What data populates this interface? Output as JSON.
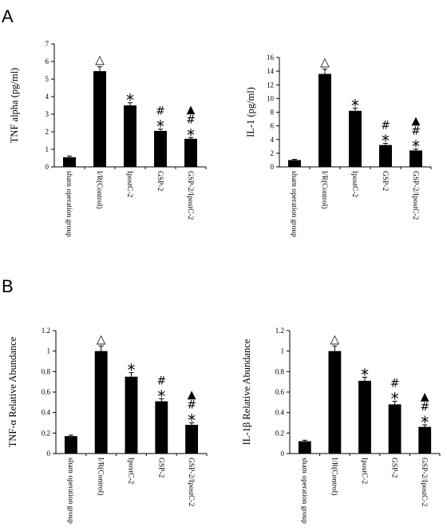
{
  "panels": [
    {
      "label": "A"
    },
    {
      "label": "B"
    }
  ],
  "chart_data": [
    {
      "type": "bar",
      "panel": "A",
      "categories": [
        "sham operation group",
        "I/R(Control)",
        "IpostC-2",
        "GSP-2",
        "GSP-2/IpostC-2"
      ],
      "values": [
        0.55,
        5.45,
        3.5,
        2.05,
        1.6
      ],
      "errors": [
        0.07,
        0.25,
        0.15,
        0.1,
        0.07
      ],
      "ylabel": "TNF alpha (pg/ml)",
      "ylim": [
        0,
        7
      ],
      "yticks": [
        "0",
        "1",
        "2",
        "3",
        "4",
        "5",
        "6",
        "7"
      ],
      "annotations": [
        [],
        [
          "△"
        ],
        [
          "*"
        ],
        [
          "*",
          "#"
        ],
        [
          "*",
          "#",
          "▲"
        ]
      ]
    },
    {
      "type": "bar",
      "panel": "A",
      "categories": [
        "sham operation group",
        "I/R(Control)",
        "IpostC-2",
        "GSP-2",
        "GSP-2/IpostC-2"
      ],
      "values": [
        1.0,
        13.6,
        8.2,
        3.2,
        2.4
      ],
      "errors": [
        0.1,
        0.7,
        0.4,
        0.25,
        0.2
      ],
      "ylabel": "IL-1 (pg/ml)",
      "ylim": [
        0,
        16
      ],
      "yticks": [
        "0",
        "2",
        "4",
        "6",
        "8",
        "10",
        "12",
        "14",
        "16"
      ],
      "annotations": [
        [],
        [
          "△"
        ],
        [
          "*"
        ],
        [
          "*",
          "#"
        ],
        [
          "*",
          "#",
          "▲"
        ]
      ]
    },
    {
      "type": "bar",
      "panel": "B",
      "categories": [
        "sham operation group",
        "I/R(Control)",
        "IpostC-2",
        "GSP-2",
        "GSP-2/IpostC-2"
      ],
      "values": [
        0.17,
        1.0,
        0.75,
        0.51,
        0.28
      ],
      "errors": [
        0.01,
        0.05,
        0.04,
        0.025,
        0.02
      ],
      "ylabel": "TNF-α Relative Abundance",
      "ylim": [
        0,
        1.2
      ],
      "yticks": [
        "0",
        "0.2",
        "0.4",
        "0.6",
        "0.8",
        "1",
        "1.2"
      ],
      "annotations": [
        [],
        [
          "△"
        ],
        [
          "*"
        ],
        [
          "*",
          "#"
        ],
        [
          "*",
          "#",
          "▲"
        ]
      ]
    },
    {
      "type": "bar",
      "panel": "B",
      "categories": [
        "sham operation group",
        "I/R(Control)",
        "IpostC-2",
        "GSP-2",
        "GSP-2/IpostC-2"
      ],
      "values": [
        0.12,
        1.0,
        0.71,
        0.48,
        0.26
      ],
      "errors": [
        0.01,
        0.05,
        0.035,
        0.03,
        0.02
      ],
      "ylabel": "IL-1β Relative Abundance",
      "ylim": [
        0,
        1.2
      ],
      "yticks": [
        "0",
        "0.2",
        "0.4",
        "0.6",
        "0.8",
        "1",
        "1.2"
      ],
      "annotations": [
        [],
        [
          "△"
        ],
        [
          "*"
        ],
        [
          "*",
          "#"
        ],
        [
          "*",
          "#",
          "▲"
        ]
      ]
    }
  ]
}
